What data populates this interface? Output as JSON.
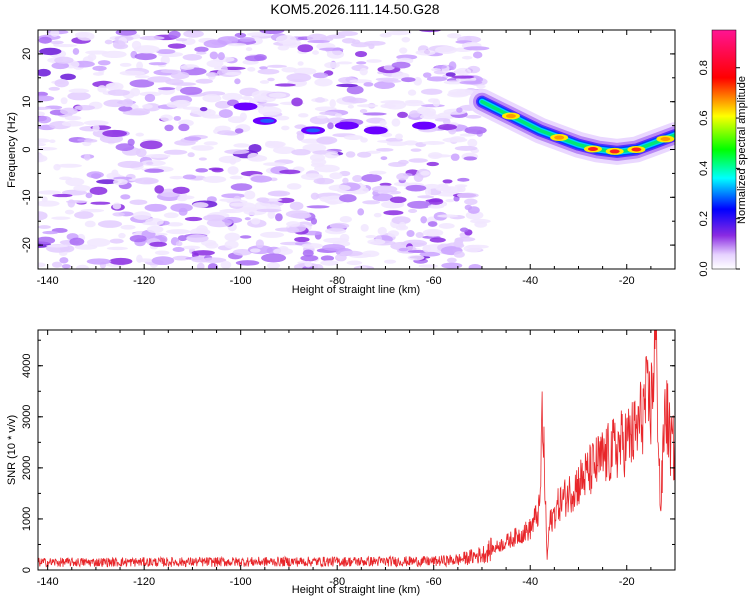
{
  "title": "KOM5.2026.111.14.50.G28",
  "chart_data": [
    {
      "type": "heatmap",
      "name": "spectrogram",
      "xlabel": "Height of straight line (km)",
      "ylabel": "Frequency (Hz)",
      "xlim": [
        -142,
        -10
      ],
      "ylim": [
        -25,
        25
      ],
      "xticks": [
        -140,
        -120,
        -100,
        -80,
        -60,
        -40,
        -20
      ],
      "yticks": [
        -20,
        -10,
        0,
        10,
        20
      ],
      "noise_region_x": [
        -142,
        -50
      ],
      "signal_track": {
        "x": [
          -50,
          -46,
          -42,
          -38,
          -34,
          -30,
          -26,
          -22,
          -18,
          -14,
          -10
        ],
        "y": [
          10,
          8,
          6,
          4,
          2.5,
          1,
          0,
          -0.5,
          0,
          1.5,
          3
        ]
      },
      "colorbar": {
        "label": "Normalized spectral amplitude",
        "range": [
          0,
          0.95
        ],
        "ticks": [
          0.0,
          0.2,
          0.4,
          0.6,
          0.8
        ]
      }
    },
    {
      "type": "line",
      "name": "snr",
      "xlabel": "Height of straight line (km)",
      "ylabel": "SNR (10 * v/v)",
      "xlim": [
        -142,
        -10
      ],
      "ylim": [
        0,
        4700
      ],
      "xticks": [
        -140,
        -120,
        -100,
        -80,
        -60,
        -40,
        -20
      ],
      "yticks": [
        0,
        1000,
        2000,
        3000,
        4000
      ],
      "color": "#e8262a",
      "envelope": {
        "x": [
          -142,
          -60,
          -55,
          -50,
          -45,
          -40,
          -38,
          -37.5,
          -37,
          -36.5,
          -36,
          -34,
          -30,
          -26,
          -22,
          -18,
          -16,
          -15,
          -14,
          -13.5,
          -13,
          -12,
          -11,
          -10
        ],
        "y": [
          150,
          170,
          200,
          300,
          550,
          800,
          1200,
          3100,
          1800,
          200,
          900,
          1300,
          1700,
          2100,
          2400,
          2700,
          3300,
          3200,
          4600,
          3000,
          1100,
          3300,
          2500,
          2300
        ]
      }
    }
  ]
}
